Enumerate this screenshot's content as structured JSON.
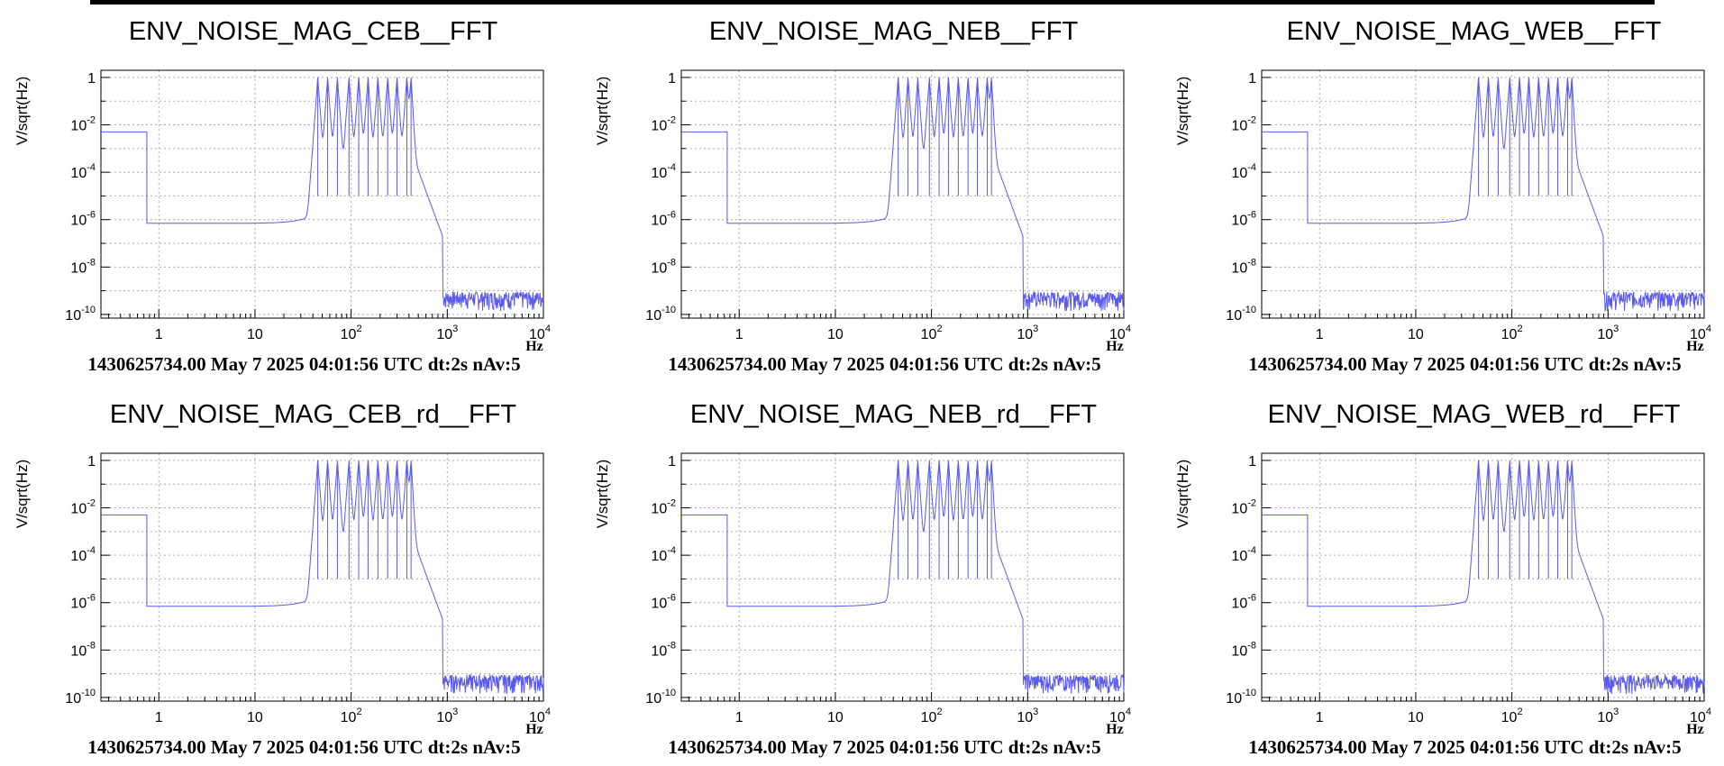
{
  "colors": {
    "series": "#5a5aee",
    "axis": "#000000",
    "grid": "#aaaaaa"
  },
  "chart_data": [
    {
      "type": "line",
      "title": "ENV_NOISE_MAG_CEB__FFT",
      "ylabel": "V/sqrt(Hz)",
      "xunit": "Hz",
      "footer": "1430625734.00 May 7 2025 04:01:56 UTC dt:2s nAv:5",
      "xscale": "log",
      "yscale": "log",
      "xlim": [
        0.25,
        10000
      ],
      "ylim": [
        7e-11,
        2
      ],
      "grid": true,
      "xticks": [
        "1",
        "10",
        "10^2",
        "10^3",
        "10^4"
      ],
      "yticks": [
        "1",
        "10^-2",
        "10^-4",
        "10^-6",
        "10^-8",
        "10^-10"
      ],
      "series": [
        {
          "baseline_low_freq": {
            "x": [
              0.25,
              0.75
            ],
            "y": 0.005
          },
          "floor_level": 7e-07,
          "high_freq_noise_floor": 4e-10,
          "peaks_hz": [
            45,
            57,
            72,
            95,
            120,
            150,
            190,
            240,
            300,
            380,
            420
          ],
          "peak_amplitude": 1
        }
      ]
    },
    {
      "type": "line",
      "title": "ENV_NOISE_MAG_NEB__FFT",
      "ylabel": "V/sqrt(Hz)",
      "xunit": "Hz",
      "footer": "1430625734.00 May 7 2025 04:01:56 UTC dt:2s nAv:5",
      "xscale": "log",
      "yscale": "log",
      "xlim": [
        0.25,
        10000
      ],
      "ylim": [
        7e-11,
        2
      ],
      "grid": true,
      "xticks": [
        "1",
        "10",
        "10^2",
        "10^3",
        "10^4"
      ],
      "yticks": [
        "1",
        "10^-2",
        "10^-4",
        "10^-6",
        "10^-8",
        "10^-10"
      ],
      "series": [
        {
          "baseline_low_freq": {
            "x": [
              0.25,
              0.75
            ],
            "y": 0.005
          },
          "floor_level": 7e-07,
          "high_freq_noise_floor": 4e-10,
          "peaks_hz": [
            45,
            57,
            72,
            95,
            120,
            150,
            190,
            240,
            300,
            380,
            420
          ],
          "peak_amplitude": 1
        }
      ]
    },
    {
      "type": "line",
      "title": "ENV_NOISE_MAG_WEB__FFT",
      "ylabel": "V/sqrt(Hz)",
      "xunit": "Hz",
      "footer": "1430625734.00 May 7 2025 04:01:56 UTC dt:2s nAv:5",
      "xscale": "log",
      "yscale": "log",
      "xlim": [
        0.25,
        10000
      ],
      "ylim": [
        7e-11,
        2
      ],
      "grid": true,
      "xticks": [
        "1",
        "10",
        "10^2",
        "10^3",
        "10^4"
      ],
      "yticks": [
        "1",
        "10^-2",
        "10^-4",
        "10^-6",
        "10^-8",
        "10^-10"
      ],
      "series": [
        {
          "baseline_low_freq": {
            "x": [
              0.25,
              0.75
            ],
            "y": 0.005
          },
          "floor_level": 7e-07,
          "high_freq_noise_floor": 4e-10,
          "peaks_hz": [
            45,
            57,
            72,
            95,
            120,
            150,
            190,
            240,
            300,
            380,
            420
          ],
          "peak_amplitude": 1
        }
      ]
    },
    {
      "type": "line",
      "title": "ENV_NOISE_MAG_CEB_rd__FFT",
      "ylabel": "V/sqrt(Hz)",
      "xunit": "Hz",
      "footer": "1430625734.00 May 7 2025 04:01:56 UTC dt:2s nAv:5",
      "xscale": "log",
      "yscale": "log",
      "xlim": [
        0.25,
        10000
      ],
      "ylim": [
        7e-11,
        2
      ],
      "grid": true,
      "xticks": [
        "1",
        "10",
        "10^2",
        "10^3",
        "10^4"
      ],
      "yticks": [
        "1",
        "10^-2",
        "10^-4",
        "10^-6",
        "10^-8",
        "10^-10"
      ],
      "series": [
        {
          "baseline_low_freq": {
            "x": [
              0.25,
              0.75
            ],
            "y": 0.005
          },
          "floor_level": 7e-07,
          "high_freq_noise_floor": 4e-10,
          "peaks_hz": [
            45,
            57,
            72,
            95,
            120,
            150,
            190,
            240,
            300,
            380,
            420
          ],
          "peak_amplitude": 1
        }
      ]
    },
    {
      "type": "line",
      "title": "ENV_NOISE_MAG_NEB_rd__FFT",
      "ylabel": "V/sqrt(Hz)",
      "xunit": "Hz",
      "footer": "1430625734.00 May 7 2025 04:01:56 UTC dt:2s nAv:5",
      "xscale": "log",
      "yscale": "log",
      "xlim": [
        0.25,
        10000
      ],
      "ylim": [
        7e-11,
        2
      ],
      "grid": true,
      "xticks": [
        "1",
        "10",
        "10^2",
        "10^3",
        "10^4"
      ],
      "yticks": [
        "1",
        "10^-2",
        "10^-4",
        "10^-6",
        "10^-8",
        "10^-10"
      ],
      "series": [
        {
          "baseline_low_freq": {
            "x": [
              0.25,
              0.75
            ],
            "y": 0.005
          },
          "floor_level": 7e-07,
          "high_freq_noise_floor": 4e-10,
          "peaks_hz": [
            45,
            57,
            72,
            95,
            120,
            150,
            190,
            240,
            300,
            380,
            420
          ],
          "peak_amplitude": 1
        }
      ]
    },
    {
      "type": "line",
      "title": "ENV_NOISE_MAG_WEB_rd__FFT",
      "ylabel": "V/sqrt(Hz)",
      "xunit": "Hz",
      "footer": "1430625734.00 May 7 2025 04:01:56 UTC dt:2s nAv:5",
      "xscale": "log",
      "yscale": "log",
      "xlim": [
        0.25,
        10000
      ],
      "ylim": [
        7e-11,
        2
      ],
      "grid": true,
      "xticks": [
        "1",
        "10",
        "10^2",
        "10^3",
        "10^4"
      ],
      "yticks": [
        "1",
        "10^-2",
        "10^-4",
        "10^-6",
        "10^-8",
        "10^-10"
      ],
      "series": [
        {
          "baseline_low_freq": {
            "x": [
              0.25,
              0.75
            ],
            "y": 0.005
          },
          "floor_level": 7e-07,
          "high_freq_noise_floor": 4e-10,
          "peaks_hz": [
            45,
            57,
            72,
            95,
            120,
            150,
            190,
            240,
            300,
            380,
            420
          ],
          "peak_amplitude": 1
        }
      ]
    }
  ]
}
